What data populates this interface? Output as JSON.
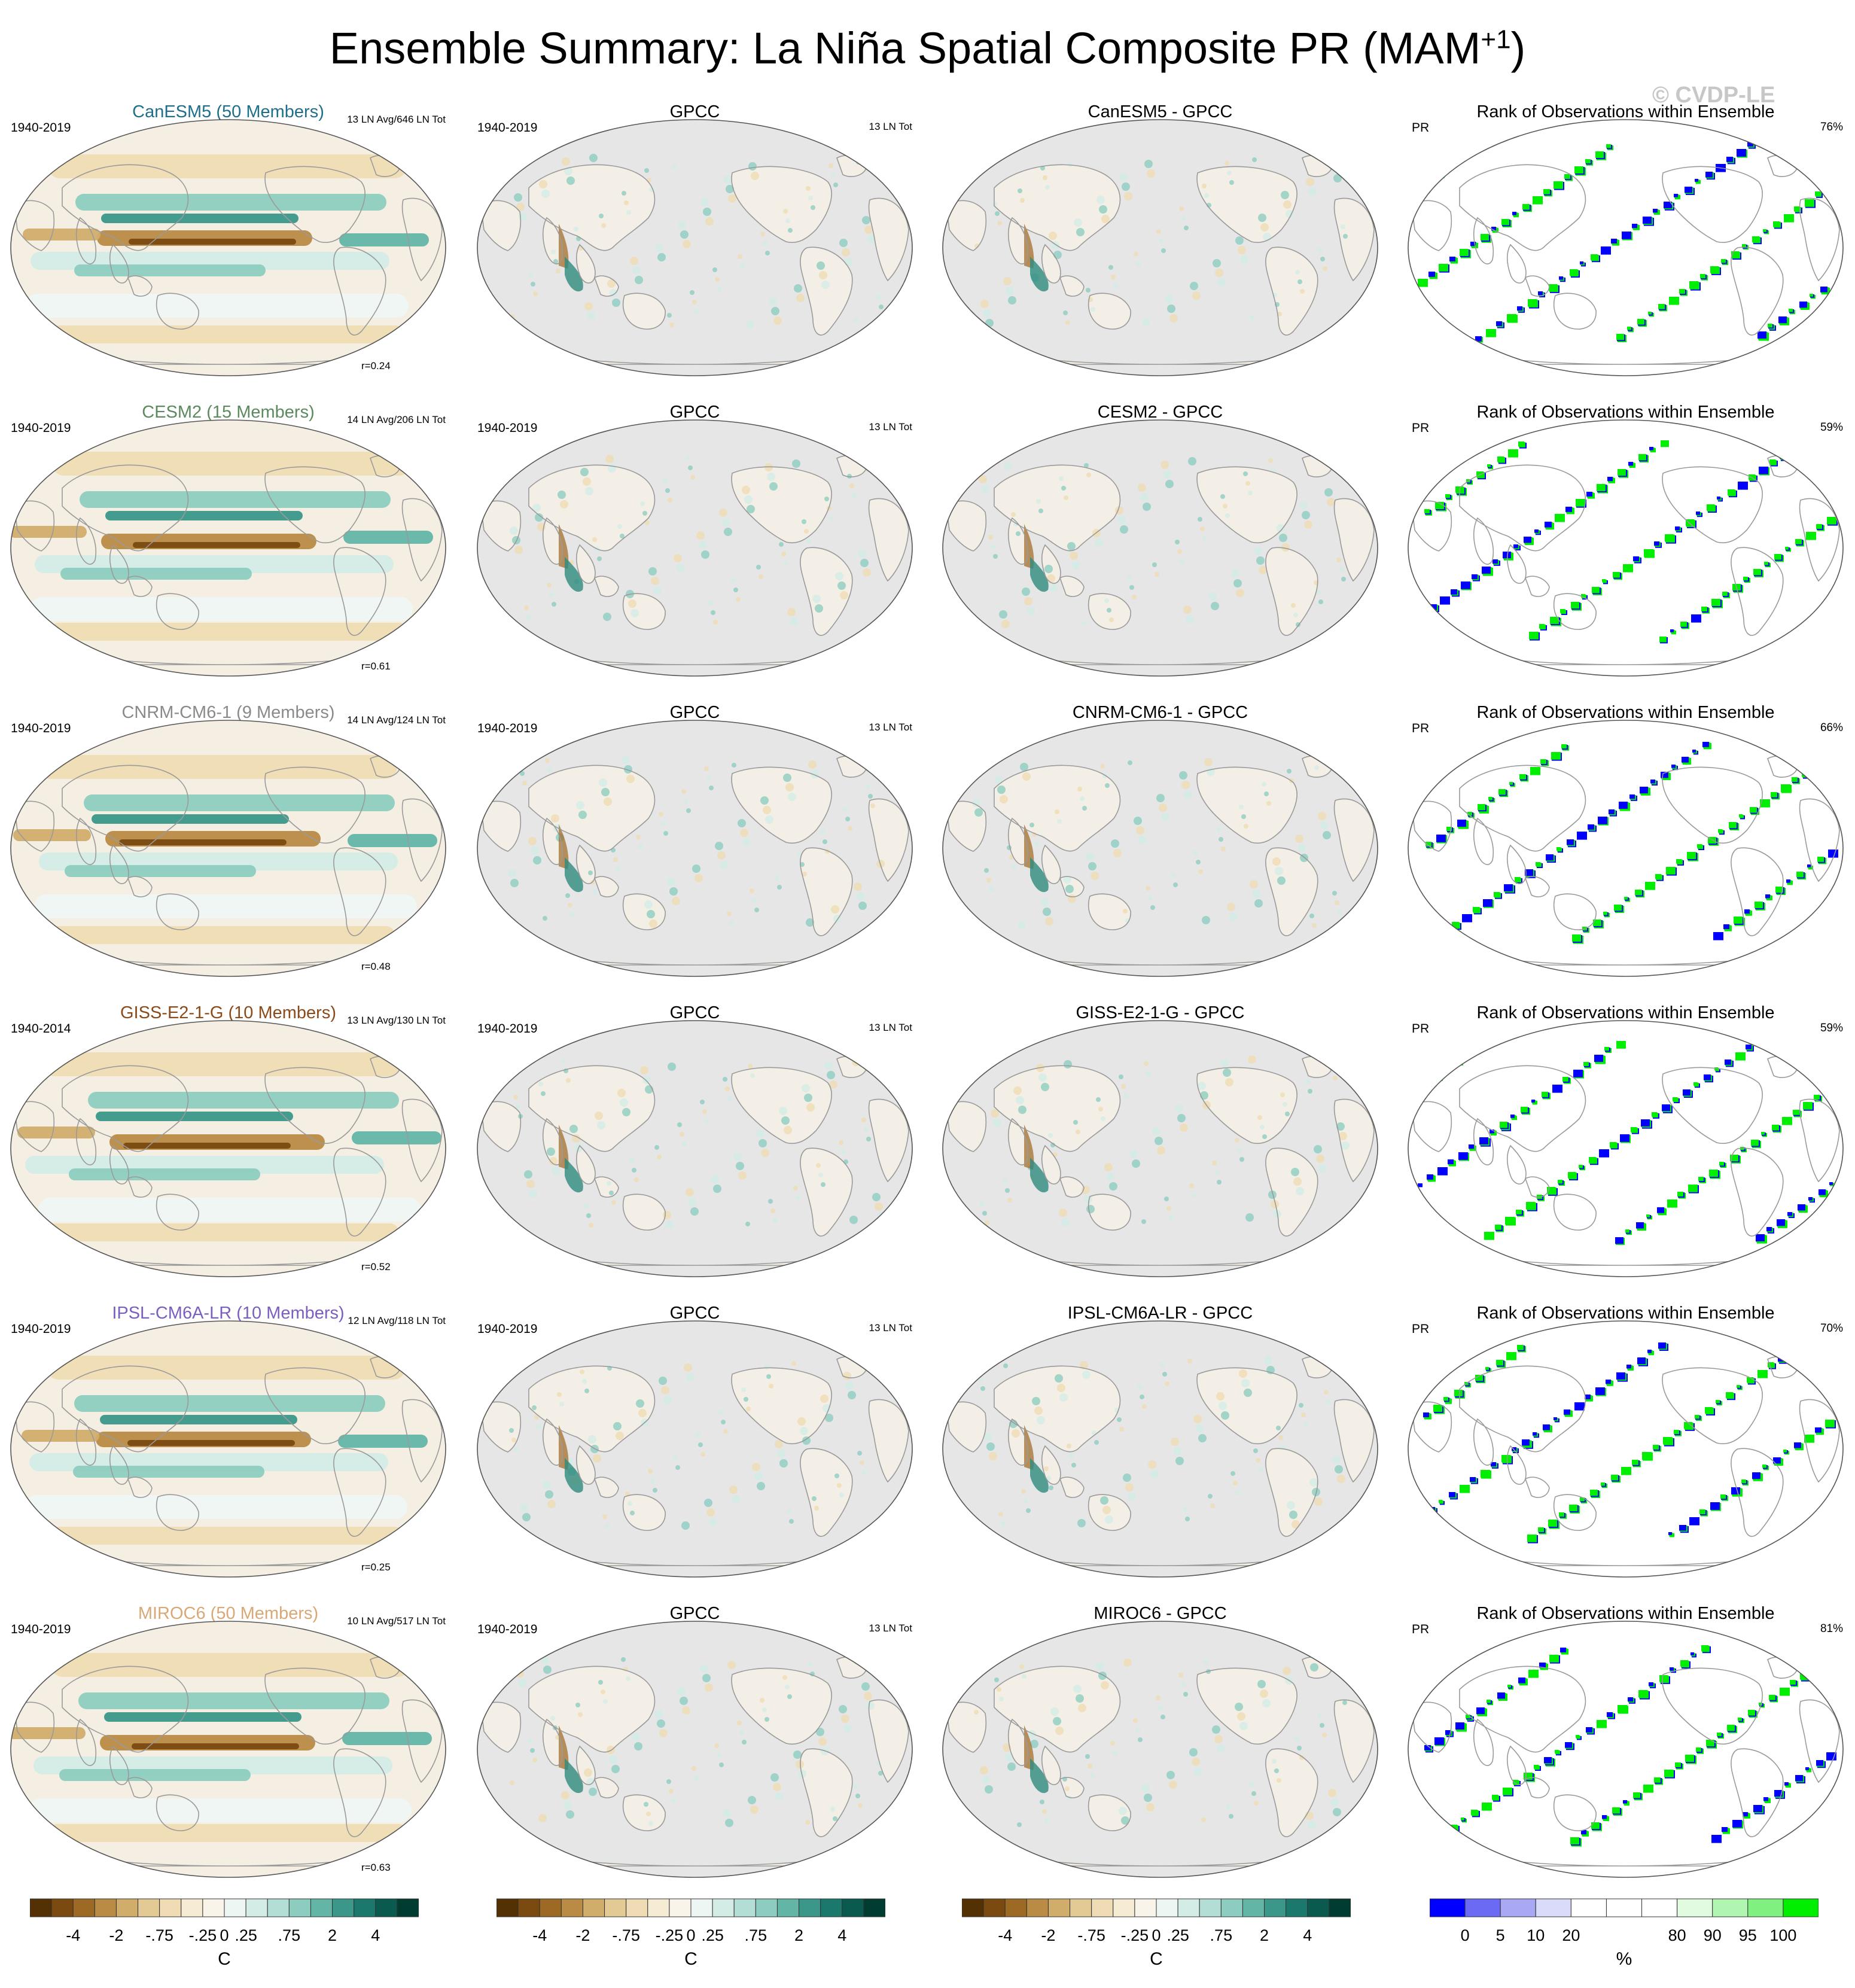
{
  "title": "Ensemble Summary: La Niña Spatial Composite PR (MAM",
  "title_sup": "+1",
  "title_end": ")",
  "watermark": "© CVDP-LE",
  "rows": [
    {
      "model_title": "CanESM5 (50 Members)",
      "color": "#1f6f8b",
      "period": "1940-2019",
      "ln_count": "13 LN Avg/646 LN Tot",
      "r": "r=0.24",
      "obs_period": "1940-2019",
      "obs_count": "13 LN Tot",
      "diff_title": "CanESM5 - GPCC",
      "rank_pct": "76%"
    },
    {
      "model_title": "CESM2 (15 Members)",
      "color": "#5a8a5e",
      "period": "1940-2019",
      "ln_count": "14 LN Avg/206 LN Tot",
      "r": "r=0.61",
      "obs_period": "1940-2019",
      "obs_count": "13 LN Tot",
      "diff_title": "CESM2 - GPCC",
      "rank_pct": "59%"
    },
    {
      "model_title": "CNRM-CM6-1 (9 Members)",
      "color": "#8a8a8a",
      "period": "1940-2019",
      "ln_count": "14 LN Avg/124 LN Tot",
      "r": "r=0.48",
      "obs_period": "1940-2019",
      "obs_count": "13 LN Tot",
      "diff_title": "CNRM-CM6-1 - GPCC",
      "rank_pct": "66%"
    },
    {
      "model_title": "GISS-E2-1-G (10 Members)",
      "color": "#8b4a1a",
      "period": "1940-2014",
      "ln_count": "13 LN Avg/130 LN Tot",
      "r": "r=0.52",
      "obs_period": "1940-2019",
      "obs_count": "13 LN Tot",
      "diff_title": "GISS-E2-1-G - GPCC",
      "rank_pct": "59%"
    },
    {
      "model_title": "IPSL-CM6A-LR (10 Members)",
      "color": "#7b5fc0",
      "period": "1940-2019",
      "ln_count": "12 LN Avg/118 LN Tot",
      "r": "r=0.25",
      "obs_period": "1940-2019",
      "obs_count": "13 LN Tot",
      "diff_title": "IPSL-CM6A-LR - GPCC",
      "rank_pct": "70%"
    },
    {
      "model_title": "MIROC6 (50 Members)",
      "color": "#d9a877",
      "period": "1940-2019",
      "ln_count": "10 LN Avg/517 LN Tot",
      "r": "r=0.63",
      "obs_period": "1940-2019",
      "obs_count": "13 LN Tot",
      "diff_title": "MIROC6 - GPCC",
      "rank_pct": "81%"
    }
  ],
  "obs_title": "GPCC",
  "rank_title": "Rank of Observations within Ensemble",
  "rank_var": "PR",
  "colorbar_anom": {
    "ticks": [
      "-4",
      "-2",
      "-.75",
      "-.25",
      "0",
      ".25",
      ".75",
      "2",
      "4"
    ],
    "unit": "C",
    "colors": [
      "#543005",
      "#7a4a10",
      "#9c6a24",
      "#b98b45",
      "#d1ad6c",
      "#e3c994",
      "#efdcb4",
      "#f6ecd4",
      "#f8f4ea",
      "#eef6f3",
      "#d3ece6",
      "#b3ded5",
      "#8dcdc0",
      "#63b5a6",
      "#3a978a",
      "#1b786d",
      "#0b5a50",
      "#003c30"
    ]
  },
  "colorbar_rank": {
    "ticks": [
      "0",
      "5",
      "10",
      "20",
      "80",
      "90",
      "95",
      "100"
    ],
    "unit": "%",
    "colors": [
      "#0000ff",
      "#6a6af5",
      "#a8a8f5",
      "#dadafa",
      "#ffffff",
      "#ffffff",
      "#ffffff",
      "#e0fbe0",
      "#b0f5b0",
      "#80f080",
      "#00ee00"
    ]
  },
  "map_colors": {
    "ocean_grey": "#e6e6e6",
    "coast": "#9a9a9a",
    "brown": "#a0671f",
    "teal": "#2e8b7e",
    "green": "#00ee00",
    "blue": "#0000ff"
  }
}
